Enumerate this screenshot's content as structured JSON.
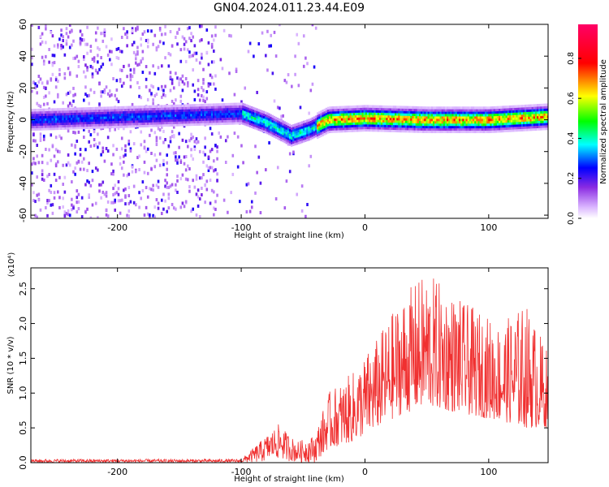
{
  "figure": {
    "title": "GN04.2024.011.23.44.E09"
  },
  "chart_data": [
    {
      "type": "heatmap",
      "title": "GN04.2024.011.23.44.E09",
      "xlabel": "Height of straight line (km)",
      "ylabel": "Frequency (Hz)",
      "xlim": [
        -270,
        148
      ],
      "ylim": [
        -62,
        60
      ],
      "xticks": [
        -200,
        -100,
        0,
        100
      ],
      "yticks": [
        60,
        40,
        20,
        0,
        -20,
        -40,
        -60
      ],
      "colorbar": {
        "label": "Normalized spectral amplitude",
        "range": [
          0,
          0.97
        ],
        "ticks": [
          0.0,
          0.2,
          0.4,
          0.6,
          0.8
        ],
        "colormap": [
          "#f2e6ff",
          "#8a2be2",
          "#0000ff",
          "#00ffff",
          "#00ff00",
          "#ffff00",
          "#ff0000",
          "#ff0066"
        ]
      },
      "ridge": {
        "description_points": [
          {
            "x": -270,
            "f": 0
          },
          {
            "x": -100,
            "f": 4
          },
          {
            "x": -80,
            "f": -2
          },
          {
            "x": -60,
            "f": -10
          },
          {
            "x": -45,
            "f": -6
          },
          {
            "x": -30,
            "f": 0
          },
          {
            "x": 0,
            "f": 1
          },
          {
            "x": 50,
            "f": 0
          },
          {
            "x": 100,
            "f": 0
          },
          {
            "x": 148,
            "f": 2
          }
        ],
        "peak_amplitude_region": [
          -40,
          148
        ]
      }
    },
    {
      "type": "line",
      "xlabel": "Height of straight line (km)",
      "ylabel": "SNR (10 * v/v)",
      "yscale_note": "(x10⁴)",
      "xlim": [
        -270,
        148
      ],
      "ylim": [
        0,
        2.8
      ],
      "xticks": [
        -200,
        -100,
        0,
        100
      ],
      "yticks": [
        0.0,
        0.5,
        1.0,
        1.5,
        2.0,
        2.5
      ],
      "color": "#f03030",
      "envelope": [
        {
          "x": -270,
          "low": 0.0,
          "high": 0.05
        },
        {
          "x": -100,
          "low": 0.0,
          "high": 0.05
        },
        {
          "x": -85,
          "low": 0.0,
          "high": 0.3
        },
        {
          "x": -70,
          "low": 0.05,
          "high": 0.55
        },
        {
          "x": -55,
          "low": 0.0,
          "high": 0.3
        },
        {
          "x": -40,
          "low": 0.0,
          "high": 0.4
        },
        {
          "x": -30,
          "low": 0.2,
          "high": 1.0
        },
        {
          "x": -10,
          "low": 0.3,
          "high": 1.3
        },
        {
          "x": 10,
          "low": 0.5,
          "high": 1.8
        },
        {
          "x": 30,
          "low": 0.7,
          "high": 2.4
        },
        {
          "x": 50,
          "low": 0.8,
          "high": 2.75
        },
        {
          "x": 80,
          "low": 0.7,
          "high": 2.3
        },
        {
          "x": 110,
          "low": 0.6,
          "high": 2.0
        },
        {
          "x": 130,
          "low": 0.5,
          "high": 2.3
        },
        {
          "x": 148,
          "low": 0.5,
          "high": 1.6
        }
      ]
    }
  ]
}
